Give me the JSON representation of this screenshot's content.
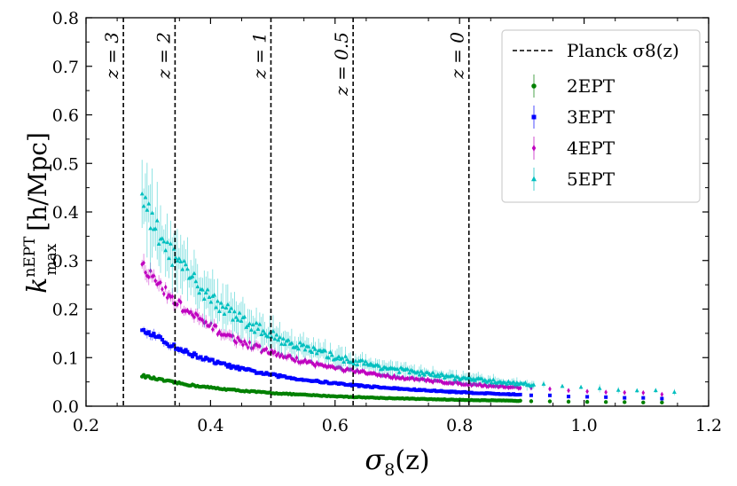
{
  "chart_data": {
    "type": "scatter",
    "title": "",
    "xlabel": "σ8(z)",
    "ylabel": "k_max^nEPT [h/Mpc]",
    "ylabel_main": "k",
    "ylabel_sup": "nEPT",
    "ylabel_sub": "max",
    "ylabel_units": "[h/Mpc]",
    "xlabel_main": "σ",
    "xlabel_sub": "8",
    "xlabel_arg": "(z)",
    "xlim": [
      0.2,
      1.2
    ],
    "ylim": [
      0.0,
      0.8
    ],
    "xticks": [
      0.2,
      0.4,
      0.6,
      0.8,
      1.0,
      1.2
    ],
    "xtick_labels": [
      "0.2",
      "0.4",
      "0.6",
      "0.8",
      "1.0",
      "1.2"
    ],
    "yticks": [
      0.0,
      0.1,
      0.2,
      0.3,
      0.4,
      0.5,
      0.6,
      0.7,
      0.8
    ],
    "ytick_labels": [
      "0.0",
      "0.1",
      "0.2",
      "0.3",
      "0.4",
      "0.5",
      "0.6",
      "0.7",
      "0.8"
    ],
    "grid": false,
    "legend_position": "top-right",
    "vlines": [
      {
        "x": 0.26,
        "label": "z = 3"
      },
      {
        "x": 0.343,
        "label": "z = 2"
      },
      {
        "x": 0.497,
        "label": "z = 1"
      },
      {
        "x": 0.629,
        "label": "z = 0.5"
      },
      {
        "x": 0.815,
        "label": "z = 0"
      }
    ],
    "vline_legend": "Planck σ8(z)",
    "x_start": 0.29,
    "x_end": 1.145,
    "series": [
      {
        "name": "2EPT",
        "color": "#008000",
        "marker": "circle",
        "k0": 0.063,
        "k_slope": 1.55,
        "noise_frac": 0.04,
        "err_frac": 0.05,
        "dense_end": 0.9,
        "sparse_step": 0.03
      },
      {
        "name": "3EPT",
        "color": "#0000ff",
        "marker": "square",
        "k0": 0.162,
        "k_slope": 1.7,
        "noise_frac": 0.04,
        "err_frac": 0.05,
        "dense_end": 0.9,
        "sparse_step": 0.03
      },
      {
        "name": "4EPT",
        "color": "#bf00bf",
        "marker": "diamond",
        "k0": 0.292,
        "k_slope": 1.8,
        "noise_frac": 0.05,
        "err_frac": 0.06,
        "dense_end": 0.9,
        "sparse_step": 0.03
      },
      {
        "name": "5EPT",
        "color": "#00bfbf",
        "marker": "triangle",
        "k0": 0.42,
        "k_slope": 1.95,
        "noise_frac": 0.07,
        "err_frac": 0.18,
        "dense_end": 0.92,
        "sparse_step": 0.03
      }
    ]
  }
}
